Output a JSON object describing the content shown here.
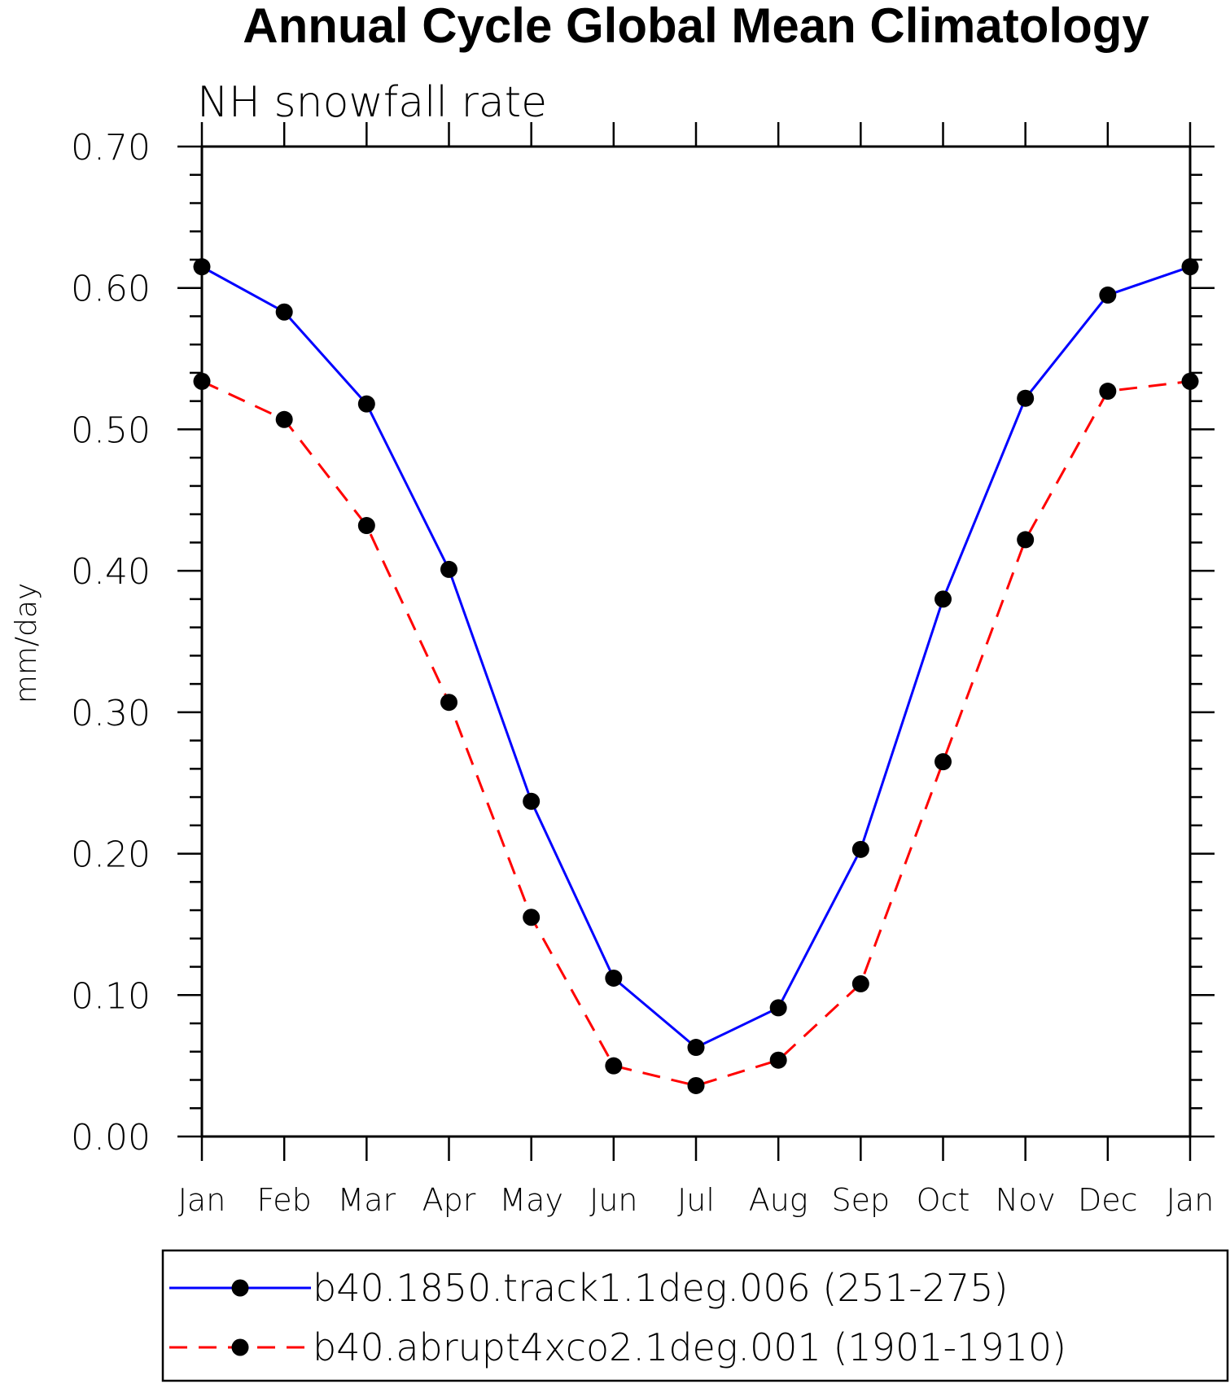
{
  "chart_data": {
    "type": "line",
    "title": "Annual Cycle Global Mean Climatology",
    "subtitle": "NH snowfall rate",
    "xlabel": "",
    "ylabel": "mm/day",
    "ylim": [
      0.0,
      0.7
    ],
    "yticks": [
      "0.00",
      "0.10",
      "0.20",
      "0.30",
      "0.40",
      "0.50",
      "0.60",
      "0.70"
    ],
    "categories": [
      "Jan",
      "Feb",
      "Mar",
      "Apr",
      "May",
      "Jun",
      "Jul",
      "Aug",
      "Sep",
      "Oct",
      "Nov",
      "Dec",
      "Jan"
    ],
    "series": [
      {
        "name": "b40.1850.track1.1deg.006 (251-275)",
        "color": "#0000ff",
        "dash": "solid",
        "values": [
          0.615,
          0.583,
          0.518,
          0.401,
          0.237,
          0.112,
          0.063,
          0.091,
          0.203,
          0.38,
          0.522,
          0.595,
          0.615
        ]
      },
      {
        "name": "b40.abrupt4xco2.1deg.001 (1901-1910)",
        "color": "#ff0000",
        "dash": "dashed",
        "values": [
          0.534,
          0.507,
          0.432,
          0.307,
          0.155,
          0.05,
          0.036,
          0.054,
          0.108,
          0.265,
          0.422,
          0.527,
          0.534
        ]
      }
    ],
    "grid": false,
    "legend_position": "bottom"
  }
}
